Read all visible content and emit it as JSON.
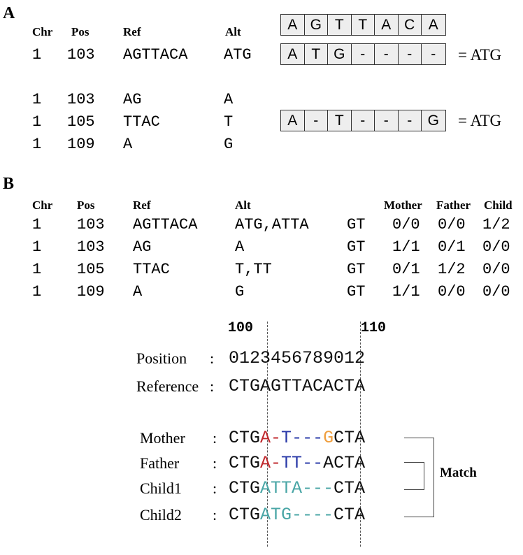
{
  "panel_a": {
    "label": "A",
    "headers": {
      "chr": "Chr",
      "pos": "Pos",
      "ref": "Ref",
      "alt": "Alt"
    },
    "row1": {
      "chr": "1",
      "pos": "103",
      "ref": "AGTTACA",
      "alt": "ATG"
    },
    "rows": [
      {
        "chr": "1",
        "pos": "103",
        "ref": "AG",
        "alt": "A"
      },
      {
        "chr": "1",
        "pos": "105",
        "ref": "TTAC",
        "alt": "T"
      },
      {
        "chr": "1",
        "pos": "109",
        "ref": "A",
        "alt": "G"
      }
    ],
    "box_ref": [
      "A",
      "G",
      "T",
      "T",
      "A",
      "C",
      "A"
    ],
    "box_alt1": [
      "A",
      "T",
      "G",
      "-",
      "-",
      "-",
      "-"
    ],
    "box_alt2": [
      "A",
      "-",
      "T",
      "-",
      "-",
      "-",
      "G"
    ],
    "eq1": "= ATG",
    "eq2": "= ATG"
  },
  "panel_b": {
    "label": "B",
    "headers": {
      "chr": "Chr",
      "pos": "Pos",
      "ref": "Ref",
      "alt": "Alt",
      "mother": "Mother",
      "father": "Father",
      "child": "Child"
    },
    "rows": [
      {
        "chr": "1",
        "pos": "103",
        "ref": "AGTTACA",
        "alt": "ATG,ATTA",
        "fmt": "GT",
        "mother": "0/0",
        "father": "0/0",
        "child": "1/2"
      },
      {
        "chr": "1",
        "pos": "103",
        "ref": "AG",
        "alt": "A",
        "fmt": "GT",
        "mother": "1/1",
        "father": "0/1",
        "child": "0/0"
      },
      {
        "chr": "1",
        "pos": "105",
        "ref": "TTAC",
        "alt": "T,TT",
        "fmt": "GT",
        "mother": "0/1",
        "father": "1/2",
        "child": "0/0"
      },
      {
        "chr": "1",
        "pos": "109",
        "ref": "A",
        "alt": "G",
        "fmt": "GT",
        "mother": "1/1",
        "father": "0/0",
        "child": "0/0"
      }
    ]
  },
  "alignment": {
    "mark_100": "100",
    "mark_110": "110",
    "position_label": "Position",
    "position_digits": "0123456789012",
    "reference_label": "Reference",
    "reference_seq": "CTGAGTTACACTA",
    "colon": ":",
    "samples": [
      {
        "label": "Mother",
        "segments": [
          {
            "text": "CTG",
            "color": "#111111"
          },
          {
            "text": "A",
            "color": "#c0282d"
          },
          {
            "text": "-",
            "color": "#c0282d"
          },
          {
            "text": "T",
            "color": "#2a3aa8"
          },
          {
            "text": "---",
            "color": "#2a3aa8"
          },
          {
            "text": "G",
            "color": "#f0a040"
          },
          {
            "text": "CTA",
            "color": "#111111"
          }
        ]
      },
      {
        "label": "Father",
        "segments": [
          {
            "text": "CTG",
            "color": "#111111"
          },
          {
            "text": "A",
            "color": "#c0282d"
          },
          {
            "text": "-",
            "color": "#c0282d"
          },
          {
            "text": "TT",
            "color": "#2a3aa8"
          },
          {
            "text": "--",
            "color": "#2a3aa8"
          },
          {
            "text": "ACTA",
            "color": "#111111"
          }
        ]
      },
      {
        "label": "Child1",
        "segments": [
          {
            "text": "CTG",
            "color": "#111111"
          },
          {
            "text": "ATTA",
            "color": "#4aa6a6"
          },
          {
            "text": "---",
            "color": "#4aa6a6"
          },
          {
            "text": "CTA",
            "color": "#111111"
          }
        ]
      },
      {
        "label": "Child2",
        "segments": [
          {
            "text": "CTG",
            "color": "#111111"
          },
          {
            "text": "ATG",
            "color": "#4aa6a6"
          },
          {
            "text": "----",
            "color": "#4aa6a6"
          },
          {
            "text": "CTA",
            "color": "#111111"
          }
        ]
      }
    ],
    "match_label": "Match"
  }
}
